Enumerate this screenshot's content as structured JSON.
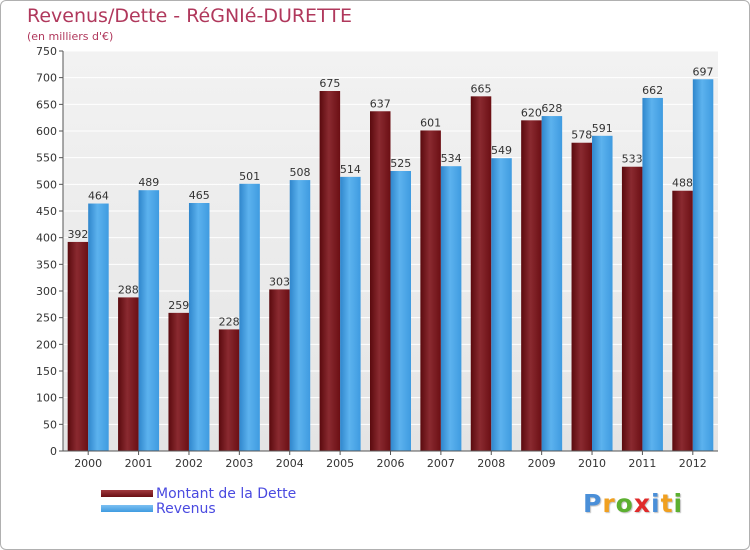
{
  "header": {
    "title": "Revenus/Dette - RéGNIé-DURETTE",
    "subtitle": "(en milliers d'€)"
  },
  "colors": {
    "title": "#b0385c",
    "dette": "#6b0f14",
    "revenus": "#3f9be0",
    "legend_text": "#4a4ae0",
    "plot_bg": "#e4e4e4",
    "grid": "#ffffff"
  },
  "legend": {
    "items": [
      {
        "label": "Montant de la Dette",
        "color": "#6b0f14"
      },
      {
        "label": "Revenus",
        "color": "#3f9be0"
      }
    ],
    "placement": "bottom-left"
  },
  "logo": {
    "letters": [
      "P",
      "r",
      "o",
      "x",
      "i",
      "t",
      "i"
    ],
    "colors": [
      "#4a8fd8",
      "#f0a020",
      "#5cb030",
      "#e02a2a",
      "#4a8fd8",
      "#f0a020",
      "#5cb030"
    ]
  },
  "chart_data": {
    "type": "bar",
    "title": "Revenus/Dette - RéGNIé-DURETTE",
    "subtitle": "(en milliers d'€)",
    "xlabel": "",
    "ylabel": "",
    "categories": [
      "2000",
      "2001",
      "2002",
      "2003",
      "2004",
      "2005",
      "2006",
      "2007",
      "2008",
      "2009",
      "2010",
      "2011",
      "2012"
    ],
    "series": [
      {
        "name": "Montant de la Dette",
        "color": "#6b0f14",
        "values": [
          392,
          288,
          259,
          228,
          303,
          675,
          637,
          601,
          665,
          620,
          578,
          533,
          488
        ]
      },
      {
        "name": "Revenus",
        "color": "#3f9be0",
        "values": [
          464,
          489,
          465,
          501,
          508,
          514,
          525,
          534,
          549,
          628,
          591,
          662,
          697
        ]
      }
    ],
    "ylim": [
      0,
      750
    ],
    "yticks": [
      0,
      50,
      100,
      150,
      200,
      250,
      300,
      350,
      400,
      450,
      500,
      550,
      600,
      650,
      700,
      750
    ],
    "grid": true,
    "data_labels": true,
    "legend_placement": "bottom-left"
  }
}
